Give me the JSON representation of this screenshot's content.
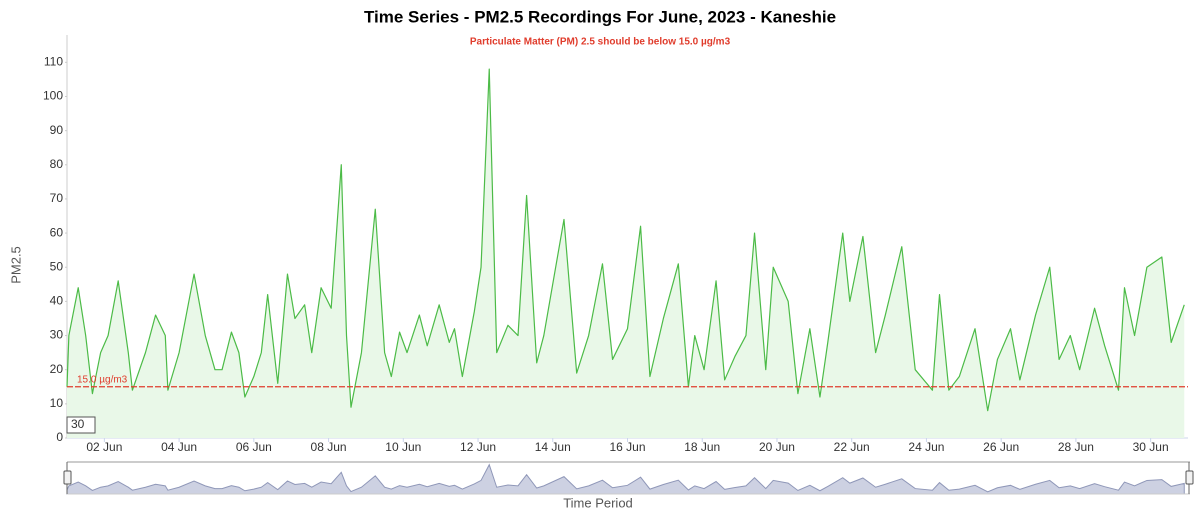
{
  "chart_data": {
    "type": "line",
    "title": "Time Series - PM2.5 Recordings For June, 2023 - Kaneshie",
    "subtitle": "Particulate Matter (PM) 2.5 should be below 15.0 µg/m3",
    "y_label": "PM2.5",
    "x_label": "Time Period",
    "zoom_label": "30",
    "threshold": {
      "value": 15,
      "label": "15.0 µg/m3",
      "color": "#e03c2c"
    },
    "xlim": [
      1,
      31
    ],
    "xticks": [
      {
        "value": 2,
        "label": "02 Jun"
      },
      {
        "value": 4,
        "label": "04 Jun"
      },
      {
        "value": 6,
        "label": "06 Jun"
      },
      {
        "value": 8,
        "label": "08 Jun"
      },
      {
        "value": 10,
        "label": "10 Jun"
      },
      {
        "value": 12,
        "label": "12 Jun"
      },
      {
        "value": 14,
        "label": "14 Jun"
      },
      {
        "value": 16,
        "label": "16 Jun"
      },
      {
        "value": 18,
        "label": "18 Jun"
      },
      {
        "value": 20,
        "label": "20 Jun"
      },
      {
        "value": 22,
        "label": "22 Jun"
      },
      {
        "value": 24,
        "label": "24 Jun"
      },
      {
        "value": 26,
        "label": "26 Jun"
      },
      {
        "value": 28,
        "label": "28 Jun"
      },
      {
        "value": 30,
        "label": "30 Jun"
      }
    ],
    "ylim": [
      0,
      118
    ],
    "yticks": [
      0,
      10,
      20,
      30,
      40,
      50,
      60,
      70,
      80,
      90,
      100,
      110
    ],
    "series": [
      {
        "name": "PM2.5",
        "color": "#4cbb47",
        "fill": "#e9f8e8",
        "x": [
          1.0,
          1.05,
          1.3,
          1.5,
          1.68,
          1.9,
          2.1,
          2.37,
          2.64,
          2.75,
          3.1,
          3.37,
          3.63,
          3.7,
          4.0,
          4.4,
          4.7,
          4.96,
          5.15,
          5.4,
          5.6,
          5.76,
          6.0,
          6.2,
          6.37,
          6.64,
          6.9,
          7.1,
          7.36,
          7.55,
          7.8,
          8.07,
          8.34,
          8.48,
          8.6,
          8.88,
          9.25,
          9.5,
          9.68,
          9.9,
          10.1,
          10.43,
          10.64,
          10.96,
          11.23,
          11.37,
          11.58,
          11.9,
          12.08,
          12.3,
          12.5,
          12.8,
          13.07,
          13.3,
          13.57,
          13.76,
          14.3,
          14.64,
          14.96,
          15.33,
          15.6,
          16.0,
          16.35,
          16.6,
          16.96,
          17.36,
          17.63,
          17.8,
          18.05,
          18.37,
          18.6,
          18.88,
          19.17,
          19.4,
          19.7,
          19.9,
          20.3,
          20.56,
          20.88,
          21.15,
          21.36,
          21.76,
          21.95,
          22.3,
          22.64,
          22.9,
          23.34,
          23.7,
          24.16,
          24.35,
          24.6,
          24.88,
          25.3,
          25.64,
          25.9,
          26.25,
          26.5,
          26.92,
          27.3,
          27.55,
          27.85,
          28.1,
          28.5,
          28.77,
          29.14,
          29.3,
          29.57,
          29.9,
          30.3,
          30.55,
          30.9
        ],
        "values": [
          15,
          30,
          44,
          30,
          13,
          25,
          30,
          46,
          25,
          14,
          25,
          36,
          30,
          14,
          25,
          48,
          30,
          20,
          20,
          31,
          25,
          12,
          18,
          25,
          42,
          16,
          48,
          35,
          39,
          25,
          44,
          38,
          80,
          30,
          9,
          25,
          67,
          25,
          18,
          31,
          25,
          36,
          27,
          39,
          28,
          32,
          18,
          37,
          50,
          108,
          25,
          33,
          30,
          71,
          22,
          30,
          64,
          19,
          30,
          51,
          23,
          32,
          62,
          18,
          35,
          51,
          15,
          30,
          20,
          46,
          17,
          24,
          30,
          60,
          20,
          50,
          40,
          13,
          32,
          12,
          28,
          60,
          40,
          59,
          25,
          36,
          56,
          20,
          14,
          42,
          14,
          18,
          32,
          8,
          23,
          32,
          17,
          36,
          50,
          23,
          30,
          20,
          38,
          27,
          14,
          44,
          30,
          50,
          53,
          28,
          39
        ]
      }
    ]
  }
}
